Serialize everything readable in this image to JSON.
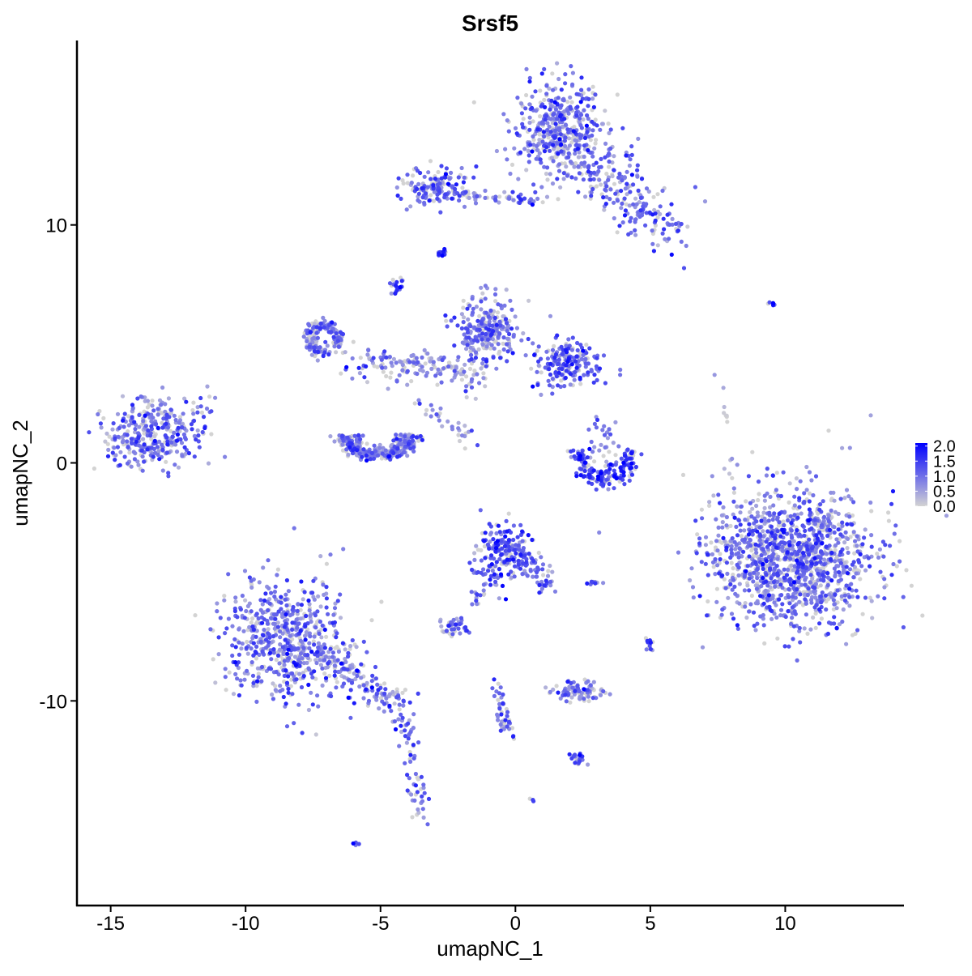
{
  "chart_data": {
    "type": "scatter",
    "title": "Srsf5",
    "xlabel": "umapNC_1",
    "ylabel": "umapNC_2",
    "xlim": [
      -16.25,
      14.4
    ],
    "ylim": [
      -18.6,
      17.75
    ],
    "xticks": [
      -15,
      -10,
      -5,
      0,
      5,
      10
    ],
    "xtick_labels": [
      "-15",
      "-10",
      "-5",
      "0",
      "5",
      "10"
    ],
    "yticks": [
      -10,
      0,
      10
    ],
    "ytick_labels": [
      "-10",
      "0",
      "10"
    ],
    "grid": false,
    "legend": {
      "placement": "right",
      "type": "colorbar",
      "range": [
        0,
        2.1
      ],
      "ticks": [
        0,
        0.5,
        1,
        1.5,
        2
      ],
      "tick_labels": [
        "0.0",
        "0.5",
        "1.0",
        "1.5",
        "2.0"
      ],
      "low_color": "#D3D3D3",
      "high_color": "#0000FF"
    },
    "clusters": [
      {
        "shape": "blob",
        "center": [
          1.6,
          14.0
        ],
        "sd": [
          0.9,
          1.0
        ],
        "n": 450,
        "expr": 0.9
      },
      {
        "shape": "line",
        "from": [
          2.6,
          12.8
        ],
        "to": [
          5.8,
          9.6
        ],
        "spread": 0.6,
        "n": 220,
        "expr": 0.9
      },
      {
        "shape": "blob",
        "center": [
          -2.9,
          11.6
        ],
        "sd": [
          0.6,
          0.4
        ],
        "n": 140,
        "expr": 1.0
      },
      {
        "shape": "line",
        "from": [
          -2.2,
          11.3
        ],
        "to": [
          1.0,
          11.0
        ],
        "spread": 0.15,
        "n": 60,
        "expr": 0.9
      },
      {
        "shape": "blob",
        "center": [
          -2.7,
          8.8
        ],
        "sd": [
          0.1,
          0.1
        ],
        "n": 15,
        "expr": 1.6
      },
      {
        "shape": "blob",
        "center": [
          -4.4,
          7.4
        ],
        "sd": [
          0.15,
          0.2
        ],
        "n": 20,
        "expr": 1.2
      },
      {
        "shape": "blob",
        "center": [
          -1.0,
          5.6
        ],
        "sd": [
          0.6,
          0.7
        ],
        "n": 250,
        "expr": 0.9
      },
      {
        "shape": "blob",
        "center": [
          1.9,
          4.2
        ],
        "sd": [
          0.6,
          0.5
        ],
        "n": 200,
        "expr": 1.1
      },
      {
        "shape": "ring",
        "center": [
          -7.1,
          5.2
        ],
        "sd": [
          0.7,
          0.7
        ],
        "n": 160,
        "expr": 0.8
      },
      {
        "shape": "line",
        "from": [
          -6.0,
          4.2
        ],
        "to": [
          -1.0,
          3.8
        ],
        "spread": 0.4,
        "n": 160,
        "expr": 0.6
      },
      {
        "shape": "line",
        "from": [
          -3.5,
          2.5
        ],
        "to": [
          -1.5,
          0.8
        ],
        "spread": 0.15,
        "n": 30,
        "expr": 0.7
      },
      {
        "shape": "arc",
        "center": [
          -5.1,
          1.2
        ],
        "sd": [
          1.4,
          1.0
        ],
        "n": 320,
        "expr": 0.8
      },
      {
        "shape": "blob",
        "center": [
          -13.5,
          1.2
        ],
        "sd": [
          0.9,
          0.7
        ],
        "n": 320,
        "expr": 0.9
      },
      {
        "shape": "line",
        "from": [
          -12.8,
          1.0
        ],
        "to": [
          -11.5,
          2.8
        ],
        "spread": 0.3,
        "n": 25,
        "expr": 0.7
      },
      {
        "shape": "arc",
        "center": [
          3.3,
          0.6
        ],
        "sd": [
          1.2,
          1.5
        ],
        "n": 170,
        "expr": 1.4
      },
      {
        "shape": "blob",
        "center": [
          3.2,
          1.0
        ],
        "sd": [
          0.3,
          0.6
        ],
        "n": 30,
        "expr": 0.8
      },
      {
        "shape": "blob",
        "center": [
          10.3,
          -4.0
        ],
        "sd": [
          1.5,
          1.4
        ],
        "n": 1300,
        "expr": 0.9
      },
      {
        "shape": "blob",
        "center": [
          -0.4,
          -3.7
        ],
        "sd": [
          0.6,
          0.6
        ],
        "n": 200,
        "expr": 1.2
      },
      {
        "shape": "line",
        "from": [
          0.3,
          -3.8
        ],
        "to": [
          1.2,
          -5.3
        ],
        "spread": 0.2,
        "n": 40,
        "expr": 1.0
      },
      {
        "shape": "line",
        "from": [
          -0.5,
          -4.0
        ],
        "to": [
          -1.6,
          -5.9
        ],
        "spread": 0.15,
        "n": 25,
        "expr": 0.9
      },
      {
        "shape": "blob",
        "center": [
          -8.6,
          -7.4
        ],
        "sd": [
          1.1,
          1.3
        ],
        "n": 600,
        "expr": 0.9
      },
      {
        "shape": "line",
        "from": [
          -7.4,
          -7.8
        ],
        "to": [
          -4.1,
          -10.5
        ],
        "spread": 0.3,
        "n": 160,
        "expr": 0.9
      },
      {
        "shape": "line",
        "from": [
          -4.1,
          -10.5
        ],
        "to": [
          -3.5,
          -15.0
        ],
        "spread": 0.2,
        "n": 60,
        "expr": 0.9
      },
      {
        "shape": "blob",
        "center": [
          -2.4,
          -6.9
        ],
        "sd": [
          0.3,
          0.2
        ],
        "n": 40,
        "expr": 1.0
      },
      {
        "shape": "blob",
        "center": [
          2.4,
          -9.6
        ],
        "sd": [
          0.5,
          0.2
        ],
        "n": 90,
        "expr": 0.8
      },
      {
        "shape": "line",
        "from": [
          -0.8,
          -9.3
        ],
        "to": [
          -0.2,
          -11.6
        ],
        "spread": 0.12,
        "n": 45,
        "expr": 1.1
      },
      {
        "shape": "blob",
        "center": [
          2.3,
          -12.5
        ],
        "sd": [
          0.2,
          0.15
        ],
        "n": 20,
        "expr": 1.4
      },
      {
        "shape": "blob",
        "center": [
          2.8,
          -5.0
        ],
        "sd": [
          0.2,
          0.05
        ],
        "n": 10,
        "expr": 1.0
      },
      {
        "shape": "blob",
        "center": [
          5.0,
          -7.5
        ],
        "sd": [
          0.1,
          0.3
        ],
        "n": 12,
        "expr": 1.0
      },
      {
        "shape": "blob",
        "center": [
          9.5,
          6.7
        ],
        "sd": [
          0.1,
          0.05
        ],
        "n": 6,
        "expr": 1.5
      },
      {
        "shape": "line",
        "from": [
          7.5,
          4.8
        ],
        "to": [
          8.2,
          -1.8
        ],
        "spread": 0.1,
        "n": 15,
        "expr": 0.3
      },
      {
        "shape": "blob",
        "center": [
          -5.9,
          -16.0
        ],
        "sd": [
          0.1,
          0.05
        ],
        "n": 6,
        "expr": 1.2
      },
      {
        "shape": "blob",
        "center": [
          0.6,
          -14.2
        ],
        "sd": [
          0.05,
          0.05
        ],
        "n": 3,
        "expr": 1.0
      }
    ]
  }
}
